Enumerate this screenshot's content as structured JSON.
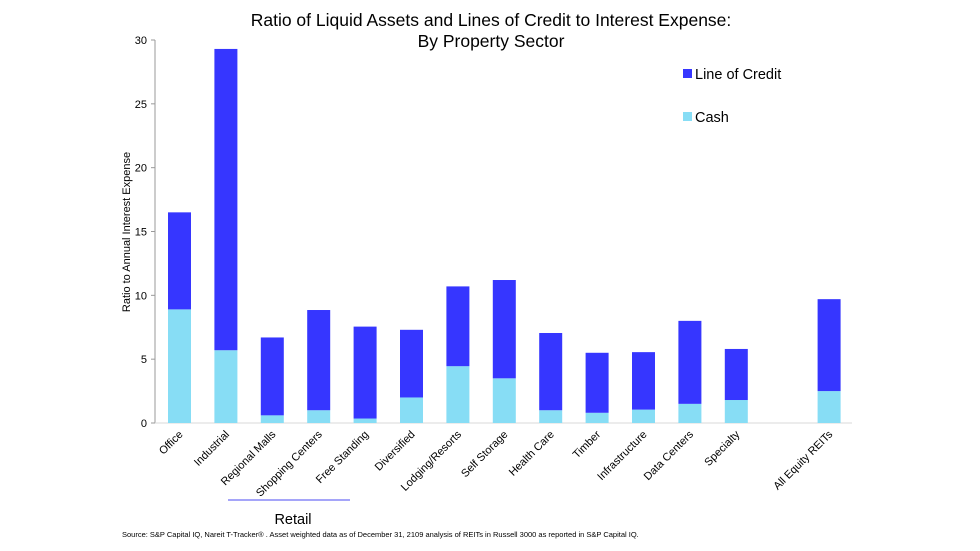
{
  "chart_data": {
    "type": "bar",
    "stacked": true,
    "title": "Ratio of Liquid Assets and Lines of Credit to Interest Expense:",
    "subtitle": "By Property Sector",
    "xlabel": "",
    "ylabel": "Ratio to Annual Interest Expense",
    "ylim": [
      0,
      30
    ],
    "yticks": [
      0,
      5,
      10,
      15,
      20,
      25,
      30
    ],
    "grid": false,
    "legend_position": "top-right",
    "categories": [
      "Office",
      "Industrial",
      "Regional Malls",
      "Shopping Centers",
      "Free Standing",
      "Diversified",
      "Lodging/Resorts",
      "Self Storage",
      "Health Care",
      "Timber",
      "Infrastructure",
      "Data Centers",
      "Specialty",
      "",
      "All Equity REITs"
    ],
    "series": [
      {
        "name": "Cash",
        "color": "#87DDF5",
        "values": [
          8.9,
          5.7,
          0.6,
          1.0,
          0.35,
          2.0,
          4.45,
          3.5,
          1.0,
          0.8,
          1.05,
          1.5,
          1.8,
          null,
          2.5
        ]
      },
      {
        "name": "Line of Credit",
        "color": "#3636FF",
        "values": [
          7.6,
          23.6,
          6.1,
          7.85,
          7.2,
          5.3,
          6.25,
          7.7,
          6.05,
          4.7,
          4.5,
          6.5,
          4.0,
          null,
          7.2
        ]
      }
    ],
    "totals": [
      16.5,
      29.3,
      6.7,
      8.85,
      7.55,
      7.3,
      10.7,
      11.2,
      7.05,
      5.5,
      5.55,
      8.0,
      5.8,
      null,
      9.7
    ],
    "legend": [
      {
        "name": "Line of Credit",
        "color": "#3636FF"
      },
      {
        "name": "Cash",
        "color": "#87DDF5"
      }
    ],
    "annotations": {
      "group_label": "Retail",
      "group_categories": [
        "Regional Malls",
        "Shopping Centers",
        "Free Standing"
      ]
    },
    "source": "Source: S&P Capital IQ, Nareit T-Tracker® . Asset weighted data as of December 31, 2109 analysis of REITs in Russell 3000 as reported in S&P Capital IQ."
  },
  "colors": {
    "axis": "#999999",
    "group_line": "#6F6FF5"
  }
}
